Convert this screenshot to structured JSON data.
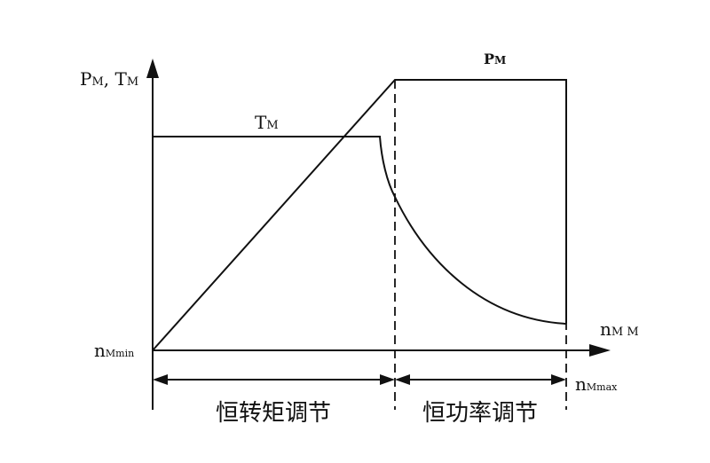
{
  "diagram": {
    "y_axis": {
      "label_main_1": "P",
      "label_sub_1": "M",
      "label_sep": ", ",
      "label_main_2": "T",
      "label_sub_2": "M"
    },
    "x_axis": {
      "label_main": "n",
      "label_sub": "M M"
    },
    "curves": {
      "tm": {
        "main": "T",
        "sub": "M"
      },
      "pm": {
        "main": "P",
        "sub": "M"
      }
    },
    "origin_label": {
      "main": "n",
      "sub": "Mmin"
    },
    "max_label": {
      "main": "n",
      "sub": "Mmax"
    },
    "regions": {
      "constant_torque": "恒转矩调节",
      "constant_power": "恒功率调节"
    },
    "colors": {
      "line": "#111111",
      "background": "#ffffff"
    }
  }
}
